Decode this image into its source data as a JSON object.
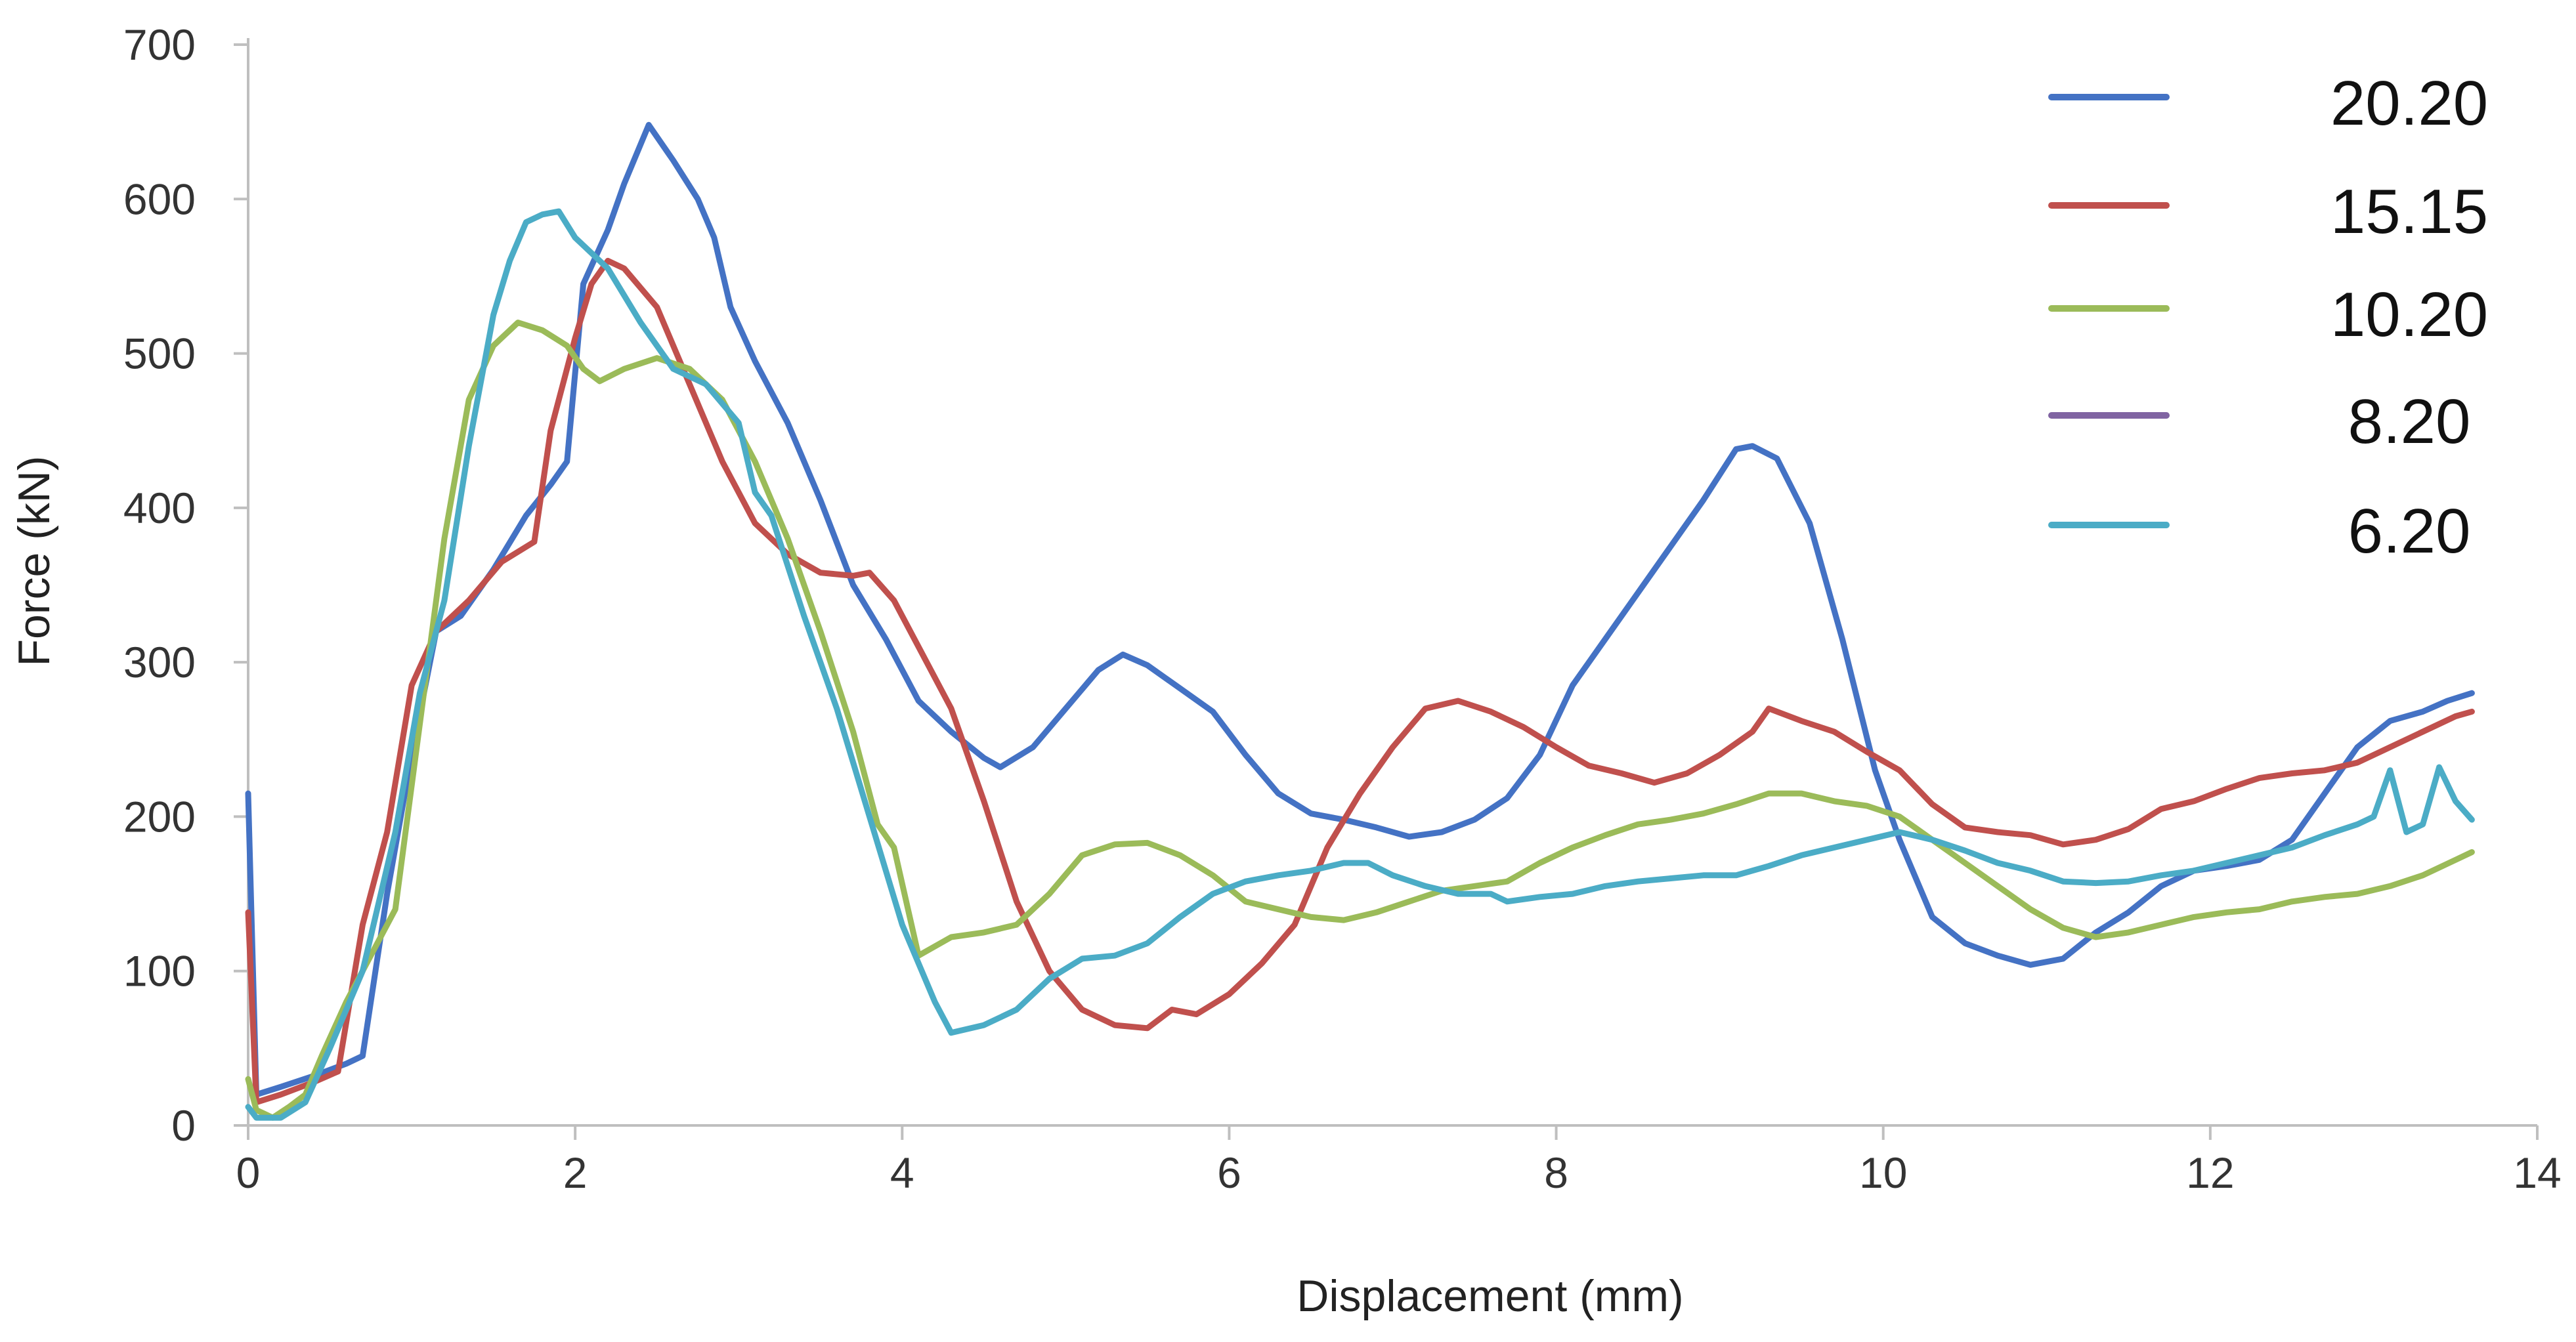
{
  "chart_data": {
    "type": "line",
    "title": "",
    "xlabel": "Displacement (mm)",
    "ylabel": "Force (kN)",
    "xlim": [
      0,
      14
    ],
    "ylim": [
      0,
      700
    ],
    "x_ticks": [
      "0",
      "2",
      "4",
      "6",
      "8",
      "10",
      "12",
      "14"
    ],
    "y_ticks": [
      "0",
      "100",
      "200",
      "300",
      "400",
      "500",
      "600",
      "700"
    ],
    "grid": false,
    "legend_position": "top-right",
    "series": [
      {
        "name": "20.20",
        "color": "#4472C4",
        "points": [
          [
            0,
            215
          ],
          [
            0.05,
            20
          ],
          [
            0.2,
            25
          ],
          [
            0.4,
            32
          ],
          [
            0.6,
            40
          ],
          [
            0.7,
            45
          ],
          [
            0.85,
            150
          ],
          [
            1.0,
            240
          ],
          [
            1.15,
            320
          ],
          [
            1.3,
            330
          ],
          [
            1.5,
            360
          ],
          [
            1.7,
            395
          ],
          [
            1.85,
            415
          ],
          [
            1.95,
            430
          ],
          [
            2.05,
            545
          ],
          [
            2.2,
            580
          ],
          [
            2.3,
            610
          ],
          [
            2.45,
            648
          ],
          [
            2.6,
            625
          ],
          [
            2.75,
            600
          ],
          [
            2.85,
            575
          ],
          [
            2.95,
            530
          ],
          [
            3.1,
            495
          ],
          [
            3.3,
            455
          ],
          [
            3.5,
            405
          ],
          [
            3.7,
            350
          ],
          [
            3.9,
            315
          ],
          [
            4.1,
            275
          ],
          [
            4.3,
            255
          ],
          [
            4.5,
            238
          ],
          [
            4.6,
            232
          ],
          [
            4.8,
            245
          ],
          [
            5.0,
            270
          ],
          [
            5.2,
            295
          ],
          [
            5.35,
            305
          ],
          [
            5.5,
            298
          ],
          [
            5.7,
            283
          ],
          [
            5.9,
            268
          ],
          [
            6.1,
            240
          ],
          [
            6.3,
            215
          ],
          [
            6.5,
            202
          ],
          [
            6.7,
            198
          ],
          [
            6.9,
            193
          ],
          [
            7.1,
            187
          ],
          [
            7.3,
            190
          ],
          [
            7.5,
            198
          ],
          [
            7.7,
            212
          ],
          [
            7.9,
            240
          ],
          [
            8.1,
            285
          ],
          [
            8.3,
            315
          ],
          [
            8.5,
            345
          ],
          [
            8.7,
            375
          ],
          [
            8.9,
            405
          ],
          [
            9.1,
            438
          ],
          [
            9.2,
            440
          ],
          [
            9.35,
            432
          ],
          [
            9.55,
            390
          ],
          [
            9.75,
            315
          ],
          [
            9.95,
            230
          ],
          [
            10.1,
            185
          ],
          [
            10.3,
            135
          ],
          [
            10.5,
            118
          ],
          [
            10.7,
            110
          ],
          [
            10.9,
            104
          ],
          [
            11.1,
            108
          ],
          [
            11.3,
            125
          ],
          [
            11.5,
            138
          ],
          [
            11.7,
            155
          ],
          [
            11.9,
            165
          ],
          [
            12.1,
            168
          ],
          [
            12.3,
            172
          ],
          [
            12.5,
            185
          ],
          [
            12.7,
            215
          ],
          [
            12.9,
            245
          ],
          [
            13.1,
            262
          ],
          [
            13.3,
            268
          ],
          [
            13.45,
            275
          ],
          [
            13.6,
            280
          ]
        ]
      },
      {
        "name": "15.15",
        "color": "#C0504D",
        "points": [
          [
            0,
            138
          ],
          [
            0.05,
            15
          ],
          [
            0.2,
            20
          ],
          [
            0.4,
            28
          ],
          [
            0.55,
            35
          ],
          [
            0.7,
            130
          ],
          [
            0.85,
            190
          ],
          [
            1.0,
            285
          ],
          [
            1.15,
            320
          ],
          [
            1.35,
            340
          ],
          [
            1.55,
            365
          ],
          [
            1.75,
            378
          ],
          [
            1.85,
            450
          ],
          [
            2.0,
            510
          ],
          [
            2.1,
            545
          ],
          [
            2.2,
            560
          ],
          [
            2.3,
            555
          ],
          [
            2.5,
            530
          ],
          [
            2.7,
            480
          ],
          [
            2.9,
            430
          ],
          [
            3.1,
            390
          ],
          [
            3.3,
            370
          ],
          [
            3.5,
            358
          ],
          [
            3.7,
            356
          ],
          [
            3.8,
            358
          ],
          [
            3.95,
            340
          ],
          [
            4.1,
            310
          ],
          [
            4.3,
            270
          ],
          [
            4.5,
            210
          ],
          [
            4.7,
            145
          ],
          [
            4.9,
            100
          ],
          [
            5.1,
            75
          ],
          [
            5.3,
            65
          ],
          [
            5.5,
            63
          ],
          [
            5.65,
            75
          ],
          [
            5.8,
            72
          ],
          [
            6.0,
            85
          ],
          [
            6.2,
            105
          ],
          [
            6.4,
            130
          ],
          [
            6.6,
            180
          ],
          [
            6.8,
            215
          ],
          [
            7.0,
            245
          ],
          [
            7.2,
            270
          ],
          [
            7.4,
            275
          ],
          [
            7.6,
            268
          ],
          [
            7.8,
            258
          ],
          [
            8.0,
            245
          ],
          [
            8.2,
            233
          ],
          [
            8.4,
            228
          ],
          [
            8.6,
            222
          ],
          [
            8.8,
            228
          ],
          [
            9.0,
            240
          ],
          [
            9.2,
            255
          ],
          [
            9.3,
            270
          ],
          [
            9.5,
            262
          ],
          [
            9.7,
            255
          ],
          [
            9.9,
            242
          ],
          [
            10.1,
            230
          ],
          [
            10.3,
            208
          ],
          [
            10.5,
            193
          ],
          [
            10.7,
            190
          ],
          [
            10.9,
            188
          ],
          [
            11.1,
            182
          ],
          [
            11.3,
            185
          ],
          [
            11.5,
            192
          ],
          [
            11.7,
            205
          ],
          [
            11.9,
            210
          ],
          [
            12.1,
            218
          ],
          [
            12.3,
            225
          ],
          [
            12.5,
            228
          ],
          [
            12.7,
            230
          ],
          [
            12.9,
            235
          ],
          [
            13.1,
            245
          ],
          [
            13.3,
            255
          ],
          [
            13.5,
            265
          ],
          [
            13.6,
            268
          ]
        ]
      },
      {
        "name": "10.20",
        "color": "#9BBB59",
        "points": [
          [
            0,
            30
          ],
          [
            0.05,
            10
          ],
          [
            0.15,
            5
          ],
          [
            0.25,
            12
          ],
          [
            0.35,
            20
          ],
          [
            0.45,
            45
          ],
          [
            0.6,
            80
          ],
          [
            0.75,
            110
          ],
          [
            0.9,
            140
          ],
          [
            1.05,
            260
          ],
          [
            1.2,
            380
          ],
          [
            1.35,
            470
          ],
          [
            1.5,
            505
          ],
          [
            1.65,
            520
          ],
          [
            1.8,
            515
          ],
          [
            1.95,
            505
          ],
          [
            2.05,
            490
          ],
          [
            2.15,
            482
          ],
          [
            2.3,
            490
          ],
          [
            2.5,
            497
          ],
          [
            2.7,
            490
          ],
          [
            2.9,
            470
          ],
          [
            3.1,
            430
          ],
          [
            3.3,
            380
          ],
          [
            3.5,
            320
          ],
          [
            3.7,
            255
          ],
          [
            3.85,
            195
          ],
          [
            3.95,
            180
          ],
          [
            4.1,
            110
          ],
          [
            4.3,
            122
          ],
          [
            4.5,
            125
          ],
          [
            4.7,
            130
          ],
          [
            4.9,
            150
          ],
          [
            5.1,
            175
          ],
          [
            5.3,
            182
          ],
          [
            5.5,
            183
          ],
          [
            5.7,
            175
          ],
          [
            5.9,
            162
          ],
          [
            6.1,
            145
          ],
          [
            6.3,
            140
          ],
          [
            6.5,
            135
          ],
          [
            6.7,
            133
          ],
          [
            6.9,
            138
          ],
          [
            7.1,
            145
          ],
          [
            7.3,
            152
          ],
          [
            7.5,
            155
          ],
          [
            7.7,
            158
          ],
          [
            7.9,
            170
          ],
          [
            8.1,
            180
          ],
          [
            8.3,
            188
          ],
          [
            8.5,
            195
          ],
          [
            8.7,
            198
          ],
          [
            8.9,
            202
          ],
          [
            9.1,
            208
          ],
          [
            9.3,
            215
          ],
          [
            9.5,
            215
          ],
          [
            9.7,
            210
          ],
          [
            9.9,
            207
          ],
          [
            10.1,
            200
          ],
          [
            10.3,
            185
          ],
          [
            10.5,
            170
          ],
          [
            10.7,
            155
          ],
          [
            10.9,
            140
          ],
          [
            11.1,
            128
          ],
          [
            11.3,
            122
          ],
          [
            11.5,
            125
          ],
          [
            11.7,
            130
          ],
          [
            11.9,
            135
          ],
          [
            12.1,
            138
          ],
          [
            12.3,
            140
          ],
          [
            12.5,
            145
          ],
          [
            12.7,
            148
          ],
          [
            12.9,
            150
          ],
          [
            13.1,
            155
          ],
          [
            13.3,
            162
          ],
          [
            13.5,
            172
          ],
          [
            13.6,
            177
          ]
        ]
      },
      {
        "name": "8.20",
        "color": "#8064A2",
        "points": []
      },
      {
        "name": "6.20",
        "color": "#4BACC6",
        "points": [
          [
            0,
            12
          ],
          [
            0.05,
            5
          ],
          [
            0.2,
            5
          ],
          [
            0.35,
            15
          ],
          [
            0.5,
            50
          ],
          [
            0.7,
            100
          ],
          [
            0.9,
            190
          ],
          [
            1.05,
            280
          ],
          [
            1.2,
            340
          ],
          [
            1.35,
            440
          ],
          [
            1.5,
            525
          ],
          [
            1.6,
            560
          ],
          [
            1.7,
            585
          ],
          [
            1.8,
            590
          ],
          [
            1.9,
            592
          ],
          [
            2.0,
            575
          ],
          [
            2.2,
            555
          ],
          [
            2.4,
            520
          ],
          [
            2.6,
            490
          ],
          [
            2.8,
            480
          ],
          [
            3.0,
            455
          ],
          [
            3.1,
            410
          ],
          [
            3.2,
            395
          ],
          [
            3.4,
            330
          ],
          [
            3.6,
            270
          ],
          [
            3.8,
            200
          ],
          [
            4.0,
            130
          ],
          [
            4.2,
            80
          ],
          [
            4.3,
            60
          ],
          [
            4.5,
            65
          ],
          [
            4.7,
            75
          ],
          [
            4.9,
            95
          ],
          [
            5.1,
            108
          ],
          [
            5.3,
            110
          ],
          [
            5.5,
            118
          ],
          [
            5.7,
            135
          ],
          [
            5.9,
            150
          ],
          [
            6.1,
            158
          ],
          [
            6.3,
            162
          ],
          [
            6.5,
            165
          ],
          [
            6.7,
            170
          ],
          [
            6.85,
            170
          ],
          [
            7.0,
            162
          ],
          [
            7.2,
            155
          ],
          [
            7.4,
            150
          ],
          [
            7.6,
            150
          ],
          [
            7.7,
            145
          ],
          [
            7.9,
            148
          ],
          [
            8.1,
            150
          ],
          [
            8.3,
            155
          ],
          [
            8.5,
            158
          ],
          [
            8.7,
            160
          ],
          [
            8.9,
            162
          ],
          [
            9.1,
            162
          ],
          [
            9.3,
            168
          ],
          [
            9.5,
            175
          ],
          [
            9.7,
            180
          ],
          [
            9.9,
            185
          ],
          [
            10.1,
            190
          ],
          [
            10.3,
            185
          ],
          [
            10.5,
            178
          ],
          [
            10.7,
            170
          ],
          [
            10.9,
            165
          ],
          [
            11.1,
            158
          ],
          [
            11.3,
            157
          ],
          [
            11.5,
            158
          ],
          [
            11.7,
            162
          ],
          [
            11.9,
            165
          ],
          [
            12.1,
            170
          ],
          [
            12.3,
            175
          ],
          [
            12.5,
            180
          ],
          [
            12.7,
            188
          ],
          [
            12.9,
            195
          ],
          [
            13.0,
            200
          ],
          [
            13.1,
            230
          ],
          [
            13.2,
            190
          ],
          [
            13.3,
            195
          ],
          [
            13.4,
            232
          ],
          [
            13.5,
            210
          ],
          [
            13.6,
            198
          ]
        ]
      }
    ]
  }
}
